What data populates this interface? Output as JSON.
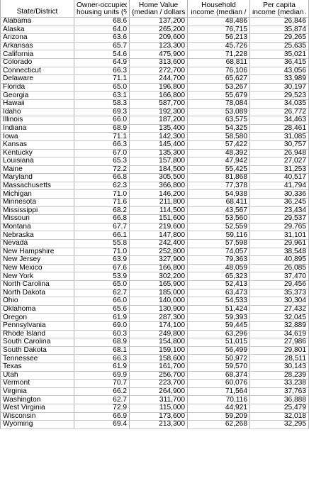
{
  "headers": {
    "state": "State/District",
    "owner": [
      "Owner-occupied",
      "housing units (%)"
    ],
    "home": [
      "Home Value",
      "(median / dollars)"
    ],
    "household": [
      "Household",
      "income (median /"
    ],
    "percapita": [
      "Per capita",
      "income (median /"
    ]
  },
  "rows": [
    [
      "Alabama",
      "68.6",
      "137,200",
      "48,486",
      "26,846"
    ],
    [
      "Alaska",
      "64.0",
      "265,200",
      "76,715",
      "35,874"
    ],
    [
      "Arizona",
      "63.6",
      "209,600",
      "56,213",
      "29,265"
    ],
    [
      "Arkansas",
      "65.7",
      "123,300",
      "45,726",
      "25,635"
    ],
    [
      "California",
      "54.6",
      "475,900",
      "71,228",
      "35,021"
    ],
    [
      "Colorado",
      "64.9",
      "313,600",
      "68,811",
      "36,415"
    ],
    [
      "Connecticut",
      "66.3",
      "272,700",
      "76,106",
      "43,056"
    ],
    [
      "Delaware",
      "71.1",
      "244,700",
      "65,627",
      "33,989"
    ],
    [
      "Florida",
      "65.0",
      "196,800",
      "53,267",
      "30,197"
    ],
    [
      "Georgia",
      "63.1",
      "166,800",
      "55,679",
      "29,523"
    ],
    [
      "Hawaii",
      "58.3",
      "587,700",
      "78,084",
      "34,035"
    ],
    [
      "Idaho",
      "69.3",
      "192,300",
      "53,089",
      "26,772"
    ],
    [
      "Illinois",
      "66.0",
      "187,200",
      "63,575",
      "34,463"
    ],
    [
      "Indiana",
      "68.9",
      "135,400",
      "54,325",
      "28,461"
    ],
    [
      "Iowa",
      "71.1",
      "142,300",
      "58,580",
      "31,085"
    ],
    [
      "Kansas",
      "66.3",
      "145,400",
      "57,422",
      "30,757"
    ],
    [
      "Kentucky",
      "67.0",
      "135,300",
      "48,392",
      "26,948"
    ],
    [
      "Louisiana",
      "65.3",
      "157,800",
      "47,942",
      "27,027"
    ],
    [
      "Maine",
      "72.2",
      "184,500",
      "55,425",
      "31,253"
    ],
    [
      "Maryland",
      "66.8",
      "305,500",
      "81,868",
      "40,517"
    ],
    [
      "Massachusetts",
      "62.3",
      "366,800",
      "77,378",
      "41,794"
    ],
    [
      "Michigan",
      "71.0",
      "146,200",
      "54,938",
      "30,336"
    ],
    [
      "Minnesota",
      "71.6",
      "211,800",
      "68,411",
      "36,245"
    ],
    [
      "Mississippi",
      "68.2",
      "114,500",
      "43,567",
      "23,434"
    ],
    [
      "Missouri",
      "66.8",
      "151,600",
      "53,560",
      "29,537"
    ],
    [
      "Montana",
      "67.7",
      "219,600",
      "52,559",
      "29,765"
    ],
    [
      "Nebraska",
      "66.1",
      "147,800",
      "59,116",
      "31,101"
    ],
    [
      "Nevada",
      "55.8",
      "242,400",
      "57,598",
      "29,961"
    ],
    [
      "New Hampshire",
      "71.0",
      "252,800",
      "74,057",
      "38,548"
    ],
    [
      "New Jersey",
      "63.9",
      "327,900",
      "79,363",
      "40,895"
    ],
    [
      "New Mexico",
      "67.6",
      "166,800",
      "48,059",
      "26,085"
    ],
    [
      "New York",
      "53.9",
      "302,200",
      "65,323",
      "37,470"
    ],
    [
      "North Carolina",
      "65.0",
      "165,900",
      "52,413",
      "29,456"
    ],
    [
      "North Dakota",
      "62.7",
      "185,000",
      "63,473",
      "35,373"
    ],
    [
      "Ohio",
      "66.0",
      "140,000",
      "54,533",
      "30,304"
    ],
    [
      "Oklahoma",
      "65.6",
      "130,900",
      "51,424",
      "27,432"
    ],
    [
      "Oregon",
      "61.9",
      "287,300",
      "59,393",
      "32,045"
    ],
    [
      "Pennsylvania",
      "69.0",
      "174,100",
      "59,445",
      "32,889"
    ],
    [
      "Rhode Island",
      "60.3",
      "249,800",
      "63,296",
      "34,619"
    ],
    [
      "South Carolina",
      "68.9",
      "154,800",
      "51,015",
      "27,986"
    ],
    [
      "South Dakota",
      "68.1",
      "159,100",
      "56,499",
      "29,801"
    ],
    [
      "Tennessee",
      "66.3",
      "158,600",
      "50,972",
      "28,511"
    ],
    [
      "Texas",
      "61.9",
      "161,700",
      "59,570",
      "30,143"
    ],
    [
      "Utah",
      "69.9",
      "256,700",
      "68,374",
      "28,239"
    ],
    [
      "Vermont",
      "70.7",
      "223,700",
      "60,076",
      "33,238"
    ],
    [
      "Virginia",
      "66.2",
      "264,900",
      "71,564",
      "37,763"
    ],
    [
      "Washington",
      "62.7",
      "311,700",
      "70,116",
      "36,888"
    ],
    [
      "West Virginia",
      "72.9",
      "115,000",
      "44,921",
      "25,479"
    ],
    [
      "Wisconsin",
      "66.9",
      "173,600",
      "59,209",
      "32,018"
    ],
    [
      "Wyoming",
      "69.4",
      "213,300",
      "62,268",
      "32,295"
    ]
  ]
}
